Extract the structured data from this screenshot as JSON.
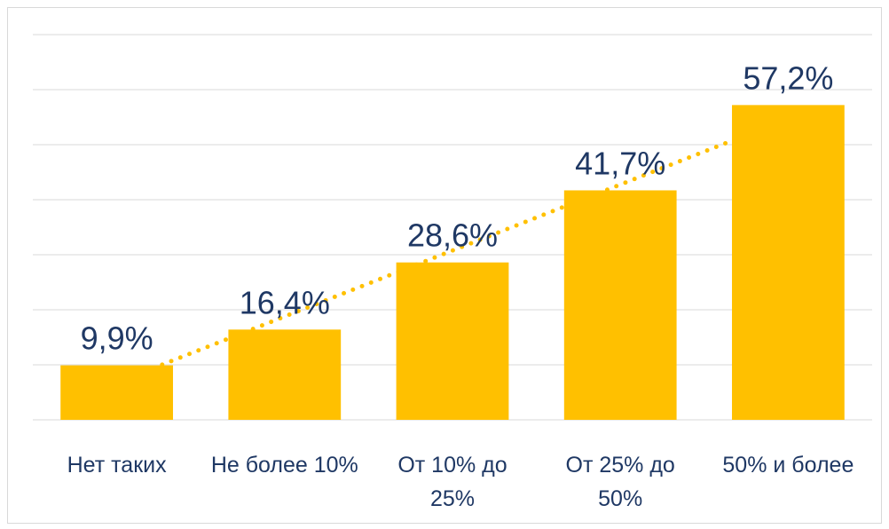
{
  "chart_data": {
    "type": "bar",
    "categories": [
      "Нет таких",
      "Не более 10%",
      "От 10% до 25%",
      "От 25% до 50%",
      "50% и более"
    ],
    "values": [
      9.9,
      16.4,
      28.6,
      41.7,
      57.2
    ],
    "value_labels": [
      "9,9%",
      "16,4%",
      "28,6%",
      "41,7%",
      "57,2%"
    ],
    "color": "#ffc000",
    "ylim": [
      0,
      70
    ],
    "yticks": [
      0,
      10,
      20,
      30,
      40,
      50,
      60,
      70
    ],
    "grid": true,
    "trendline": true,
    "trendline_color": "#ffc000"
  }
}
